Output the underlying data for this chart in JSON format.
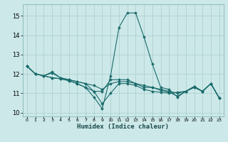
{
  "xlabel": "Humidex (Indice chaleur)",
  "background_color": "#cce8e8",
  "grid_color": "#aacccc",
  "line_color": "#1a6b6b",
  "xlim": [
    -0.5,
    23.5
  ],
  "ylim": [
    9.8,
    15.6
  ],
  "yticks": [
    10,
    11,
    12,
    13,
    14,
    15
  ],
  "xticks": [
    0,
    1,
    2,
    3,
    4,
    5,
    6,
    7,
    8,
    9,
    10,
    11,
    12,
    13,
    14,
    15,
    16,
    17,
    18,
    19,
    20,
    21,
    22,
    23
  ],
  "series": [
    [
      12.4,
      12.0,
      11.9,
      12.1,
      11.8,
      11.7,
      11.6,
      11.5,
      11.4,
      11.2,
      11.5,
      11.6,
      11.6,
      11.5,
      11.4,
      11.3,
      11.2,
      11.1,
      11.0,
      11.1,
      11.3,
      11.1,
      11.5,
      10.75
    ],
    [
      12.4,
      12.0,
      11.9,
      11.8,
      11.75,
      11.65,
      11.5,
      11.3,
      10.8,
      10.2,
      11.9,
      14.4,
      15.15,
      15.15,
      13.9,
      12.5,
      11.3,
      11.2,
      10.8,
      11.1,
      11.35,
      11.1,
      11.5,
      10.75
    ],
    [
      12.4,
      12.0,
      11.9,
      12.05,
      11.8,
      11.7,
      11.6,
      11.5,
      11.1,
      10.45,
      11.0,
      11.5,
      11.5,
      11.4,
      11.2,
      11.1,
      11.05,
      11.0,
      11.05,
      11.1,
      11.3,
      11.1,
      11.5,
      10.75
    ],
    [
      12.4,
      12.0,
      11.9,
      11.8,
      11.75,
      11.65,
      11.5,
      11.3,
      11.1,
      11.1,
      11.7,
      11.7,
      11.7,
      11.5,
      11.3,
      11.3,
      11.15,
      11.05,
      10.85,
      11.1,
      11.35,
      11.1,
      11.5,
      10.75
    ]
  ]
}
